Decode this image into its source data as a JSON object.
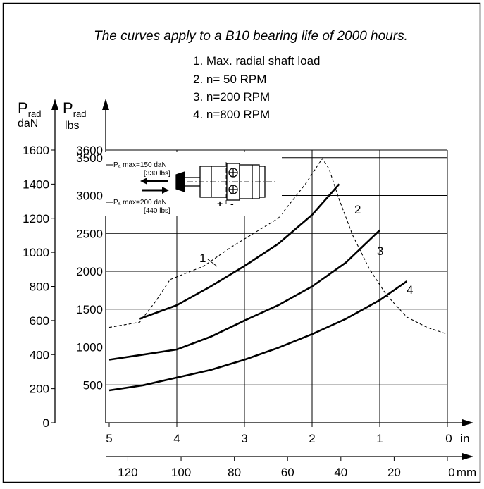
{
  "chart_data": {
    "type": "line",
    "title": "The curves apply to a B10 bearing life of 2000 hours.",
    "legend": [
      "1. Max. radial shaft load",
      "2. n=  50 RPM",
      "3. n=200 RPM",
      "4. n=800 RPM"
    ],
    "y_axes": [
      {
        "label": "P",
        "sub": "rad",
        "unit": "daN",
        "range": [
          0,
          1600
        ],
        "ticks": [
          0,
          200,
          400,
          600,
          800,
          1000,
          1200,
          1400,
          1600
        ]
      },
      {
        "label": "P",
        "sub": "rad",
        "unit": "lbs",
        "range": [
          0,
          3600
        ],
        "ticks": [
          500,
          1000,
          1500,
          2000,
          2500,
          3000,
          3500,
          3600
        ]
      }
    ],
    "x_axes": [
      {
        "unit": "in",
        "ticks": [
          5,
          4,
          3,
          2,
          1,
          0
        ],
        "range": [
          5,
          0
        ]
      },
      {
        "unit": "mm",
        "ticks": [
          120,
          100,
          80,
          60,
          40,
          20,
          0
        ],
        "range": [
          127,
          0
        ]
      }
    ],
    "series": [
      {
        "name": "1",
        "style": "dashed",
        "x": [
          5.0,
          4.55,
          4.3,
          4.1,
          3.6,
          3.2,
          2.5,
          2.1,
          1.85,
          1.75,
          1.6,
          1.4,
          1.15,
          0.9,
          0.6,
          0.3,
          0.0
        ],
        "y": [
          560,
          590,
          720,
          840,
          920,
          1030,
          1200,
          1400,
          1550,
          1490,
          1310,
          1100,
          900,
          750,
          620,
          560,
          520
        ]
      },
      {
        "name": "2",
        "style": "solid",
        "x": [
          4.55,
          4.0,
          3.5,
          3.0,
          2.5,
          2.0,
          1.6
        ],
        "y": [
          610,
          690,
          800,
          920,
          1050,
          1220,
          1400
        ]
      },
      {
        "name": "3",
        "style": "solid",
        "x": [
          5.0,
          4.5,
          4.0,
          3.5,
          3.0,
          2.5,
          2.0,
          1.5,
          1.0
        ],
        "y": [
          370,
          400,
          430,
          505,
          600,
          690,
          800,
          940,
          1130
        ]
      },
      {
        "name": "4",
        "style": "solid",
        "x": [
          5.0,
          4.5,
          4.0,
          3.5,
          3.0,
          2.5,
          2.0,
          1.5,
          1.0,
          0.6
        ],
        "y": [
          190,
          220,
          265,
          310,
          370,
          440,
          520,
          610,
          720,
          830
        ]
      }
    ],
    "inset": {
      "line1": "Pₐ max=150 daN",
      "line2": "[330 lbs]",
      "line3": "Pₐ max=200 daN",
      "line4": "[440 lbs]",
      "plus": "+",
      "minus": "-"
    }
  }
}
